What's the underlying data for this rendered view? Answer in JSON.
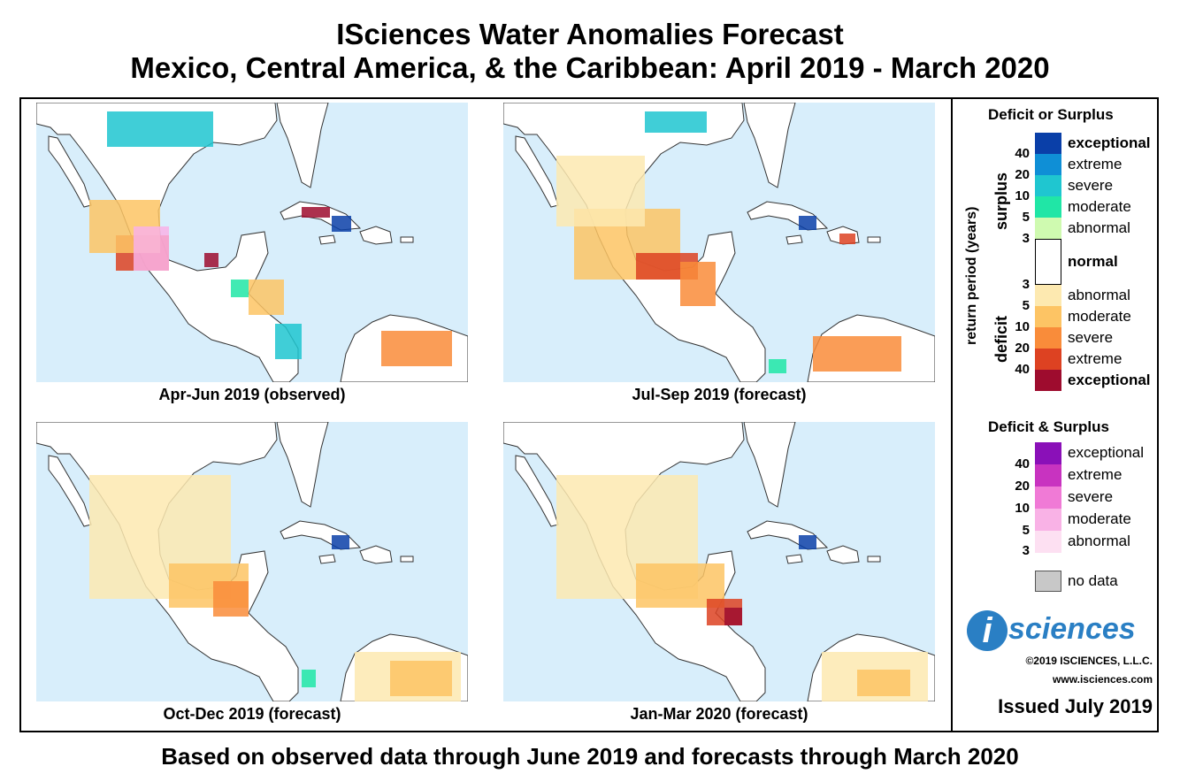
{
  "title": {
    "line1": "ISciences Water Anomalies Forecast",
    "line2": "Mexico, Central America, & the Caribbean: April 2019 - March 2020"
  },
  "panels": [
    {
      "caption": "Apr-Jun 2019 (observed)"
    },
    {
      "caption": "Jul-Sep 2019 (forecast)"
    },
    {
      "caption": "Oct-Dec 2019 (forecast)"
    },
    {
      "caption": "Jan-Mar 2020 (forecast)"
    }
  ],
  "legend": {
    "section1_title": "Deficit or Surplus",
    "axis_label": "return period (years)",
    "surplus_label": "surplus",
    "deficit_label": "deficit",
    "surplus_items": [
      {
        "label": "exceptional",
        "color": "#0a3fa8",
        "bold": true
      },
      {
        "label": "extreme",
        "color": "#0f8fd6",
        "bold": false
      },
      {
        "label": "severe",
        "color": "#1fc6d0",
        "bold": false
      },
      {
        "label": "moderate",
        "color": "#20e6a6",
        "bold": false
      },
      {
        "label": "abnormal",
        "color": "#cffab0",
        "bold": false
      }
    ],
    "normal": {
      "label": "normal",
      "color": "#ffffff"
    },
    "deficit_items": [
      {
        "label": "abnormal",
        "color": "#fde9b0",
        "bold": false
      },
      {
        "label": "moderate",
        "color": "#fdc464",
        "bold": false
      },
      {
        "label": "severe",
        "color": "#f98c3a",
        "bold": false
      },
      {
        "label": "extreme",
        "color": "#dd4222",
        "bold": false
      },
      {
        "label": "exceptional",
        "color": "#9e0c2e",
        "bold": true
      }
    ],
    "surplus_nums": [
      "40",
      "20",
      "10",
      "5",
      "3"
    ],
    "deficit_nums": [
      "3",
      "5",
      "10",
      "20",
      "40"
    ],
    "section2_title": "Deficit & Surplus",
    "both_items": [
      {
        "label": "exceptional",
        "color": "#8a10b8"
      },
      {
        "label": "extreme",
        "color": "#c833c0"
      },
      {
        "label": "severe",
        "color": "#f07ad6"
      },
      {
        "label": "moderate",
        "color": "#f9b2e6"
      },
      {
        "label": "abnormal",
        "color": "#fde0f2"
      }
    ],
    "both_nums": [
      "40",
      "20",
      "10",
      "5",
      "3"
    ],
    "nodata": {
      "label": "no data",
      "color": "#c8c8c8"
    }
  },
  "logo": {
    "i": "i",
    "text": "sciences"
  },
  "copyright": "©2019 ISCIENCES, L.L.C.",
  "website": "www.isciences.com",
  "issued": "Issued July 2019",
  "footer": "Based on observed data through June 2019 and forecasts through March 2020",
  "colors": {
    "ocean": "#d8eefb",
    "land": "#ffffff",
    "border": "#333333"
  }
}
